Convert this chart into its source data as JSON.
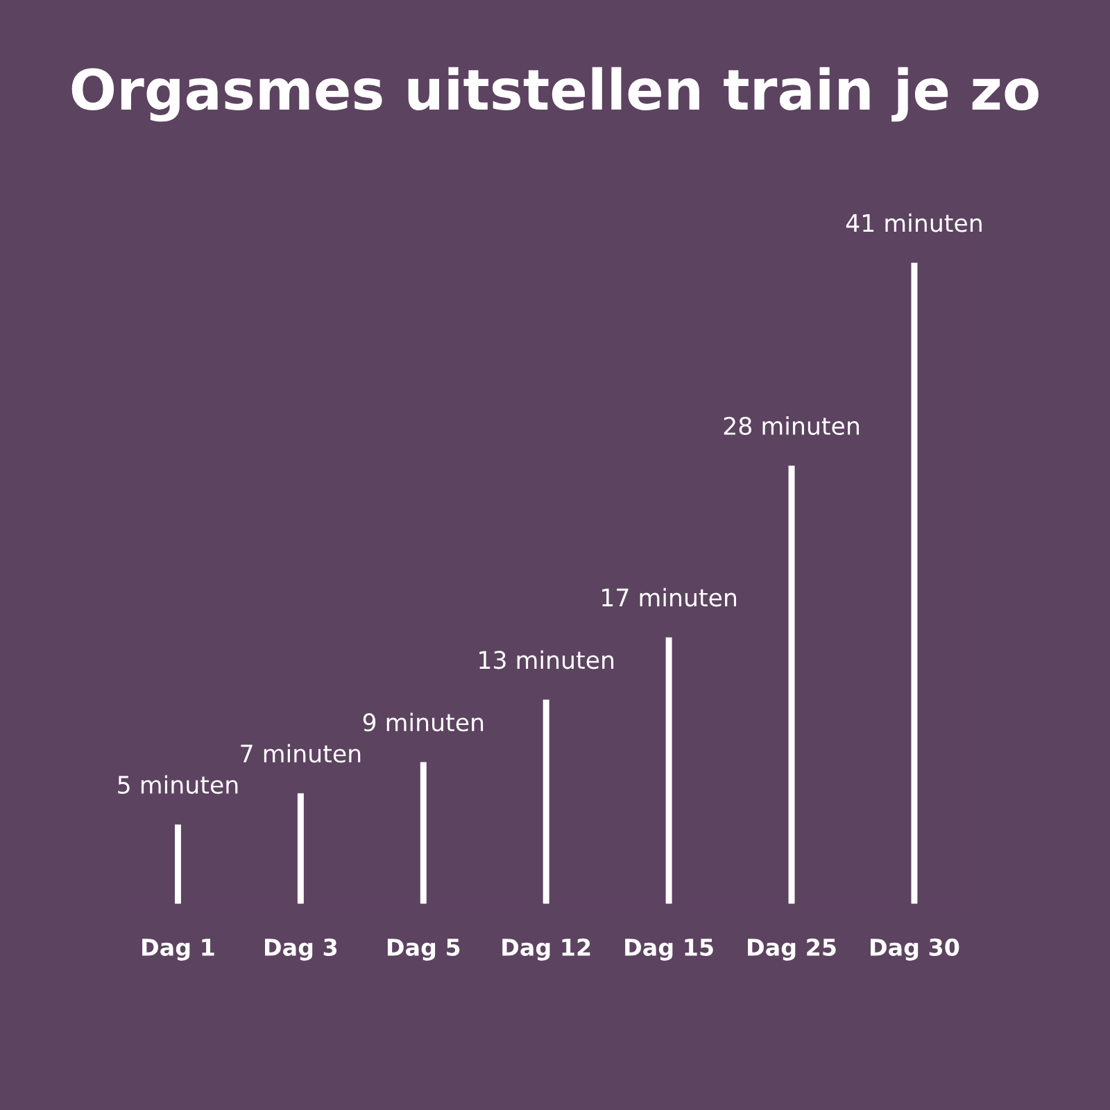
{
  "chart_data": {
    "type": "bar",
    "title": "Orgasmes uitstellen train je zo",
    "categories": [
      "Dag 1",
      "Dag 3",
      "Dag 5",
      "Dag 12",
      "Dag 15",
      "Dag 25",
      "Dag 30"
    ],
    "values": [
      5,
      7,
      9,
      13,
      17,
      28,
      41
    ],
    "value_labels": [
      "5 minuten",
      "7 minuten",
      "9 minuten",
      "13 minuten",
      "17 minuten",
      "28 minuten",
      "41 minuten"
    ],
    "color": "#ffffff",
    "grid": false,
    "legend": false
  }
}
